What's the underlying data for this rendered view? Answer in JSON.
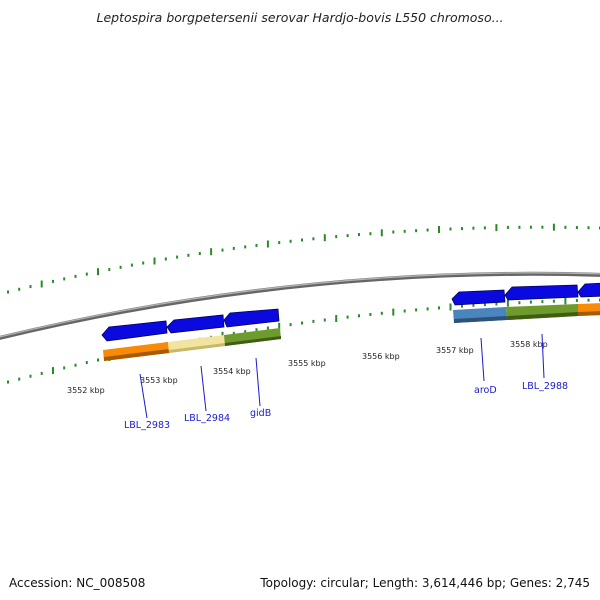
{
  "title": "Leptospira borgpetersenii serovar Hardjo-bovis L550 chromoso...",
  "footer": {
    "accession": "Accession: NC_008508",
    "summary": "Topology: circular; Length: 3,614,446 bp; Genes: 2,745"
  },
  "colors": {
    "backbone": "#808080",
    "tick_marks": "#2a8a2a",
    "gene_arrow": "#0a0ae0",
    "orange_block": "#f98a05",
    "yellow_block": "#f0e4a0",
    "green_block": "#6f9a2e",
    "steelblue_block": "#4a86bd",
    "label_text": "#1a1acc"
  },
  "scale": {
    "unit": "kbp",
    "tick_labels": [
      "3552 kbp",
      "3553 kbp",
      "3554 kbp",
      "3555 kbp",
      "3556 kbp",
      "3557 kbp",
      "3558 kbp"
    ]
  },
  "genes": [
    {
      "label": "LBL_2983"
    },
    {
      "label": "LBL_2984"
    },
    {
      "label": "gidB"
    },
    {
      "label": "aroD"
    },
    {
      "label": "LBL_2988"
    }
  ]
}
